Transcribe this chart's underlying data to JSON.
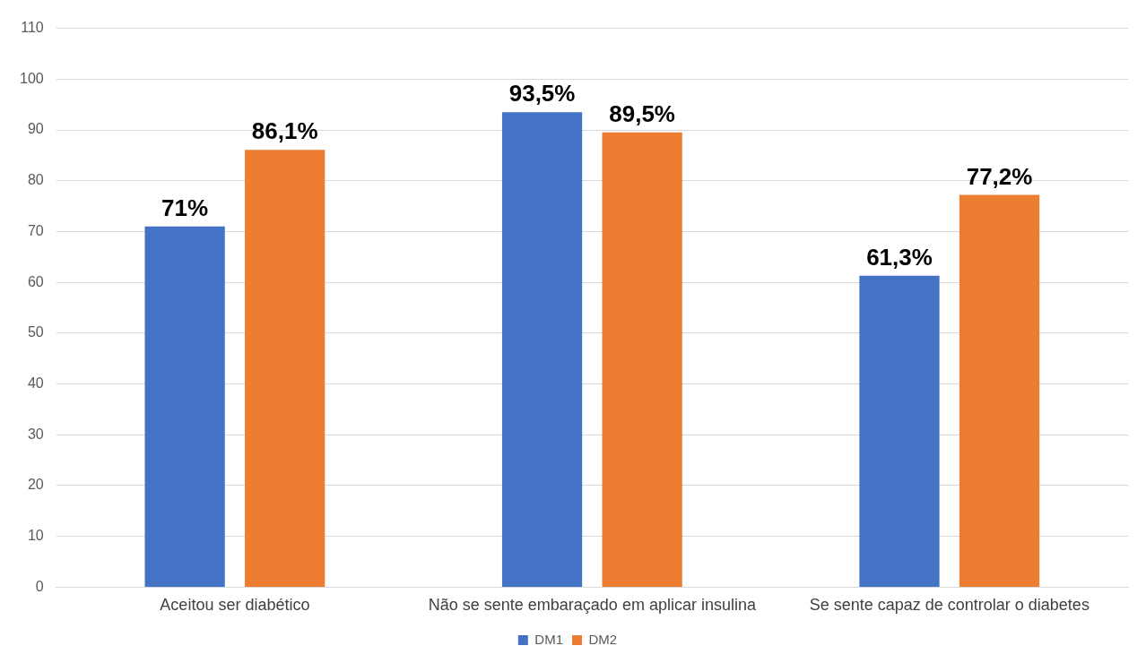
{
  "chart_data": {
    "type": "bar",
    "categories": [
      "Aceitou ser diabético",
      "Não se sente embaraçado em aplicar insulina",
      "Se sente capaz de controlar o diabetes"
    ],
    "series": [
      {
        "name": "DM1",
        "color": "#4472c4",
        "values": [
          71,
          93.5,
          61.3
        ],
        "value_labels": [
          "71%",
          "93,5%",
          "61,3%"
        ]
      },
      {
        "name": "DM2",
        "color": "#ed7d31",
        "values": [
          86.1,
          89.5,
          77.2
        ],
        "value_labels": [
          "86,1%",
          "89,5%",
          "77,2%"
        ]
      }
    ],
    "ylim": [
      0,
      110
    ],
    "yticks": [
      0,
      10,
      20,
      30,
      40,
      50,
      60,
      70,
      80,
      90,
      100,
      110
    ],
    "grid": "y",
    "legend": "bottom"
  }
}
